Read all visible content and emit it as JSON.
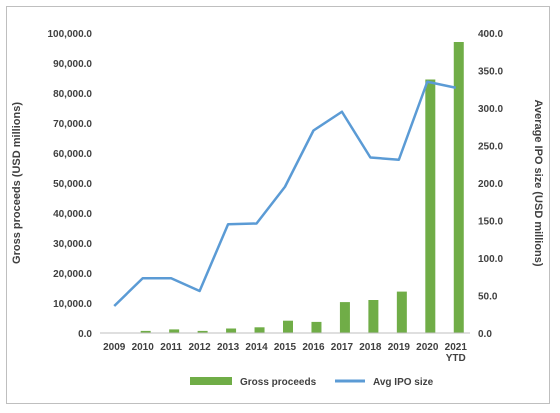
{
  "chart_data": {
    "type": "bar+line",
    "categories": [
      "2009",
      "2010",
      "2011",
      "2012",
      "2013",
      "2014",
      "2015",
      "2016",
      "2017",
      "2018",
      "2019",
      "2020",
      "2021 YTD"
    ],
    "category_lines": [
      [
        "2009"
      ],
      [
        "2010"
      ],
      [
        "2011"
      ],
      [
        "2012"
      ],
      [
        "2013"
      ],
      [
        "2014"
      ],
      [
        "2015"
      ],
      [
        "2016"
      ],
      [
        "2017"
      ],
      [
        "2018"
      ],
      [
        "2019"
      ],
      [
        "2020"
      ],
      [
        "2021",
        "YTD"
      ]
    ],
    "series": [
      {
        "name": "Gross proceeds",
        "type": "bar",
        "axis": "left",
        "color": "#70ad47",
        "values": [
          0,
          700,
          1200,
          700,
          1500,
          1900,
          4100,
          3700,
          10300,
          11000,
          13800,
          84500,
          97000
        ]
      },
      {
        "name": "Avg IPO size",
        "type": "line",
        "axis": "right",
        "color": "#5b9bd5",
        "values": [
          36,
          73,
          73,
          56,
          145,
          146,
          195,
          270,
          295,
          234,
          231,
          335,
          327
        ]
      }
    ],
    "ylabel": "Gross proceeds (USD millions)",
    "y2label": "Average IPO size (USD millions)",
    "ylim": [
      0,
      100000
    ],
    "y2lim": [
      0,
      400
    ],
    "yticks": [
      "0.0",
      "10,000.0",
      "20,000.0",
      "30,000.0",
      "40,000.0",
      "50,000.0",
      "60,000.0",
      "70,000.0",
      "80,000.0",
      "90,000.0",
      "100,000.0"
    ],
    "y2ticks": [
      "0.0",
      "50.0",
      "100.0",
      "150.0",
      "200.0",
      "250.0",
      "300.0",
      "350.0",
      "400.0"
    ],
    "grid": false,
    "legend_position": "bottom"
  }
}
